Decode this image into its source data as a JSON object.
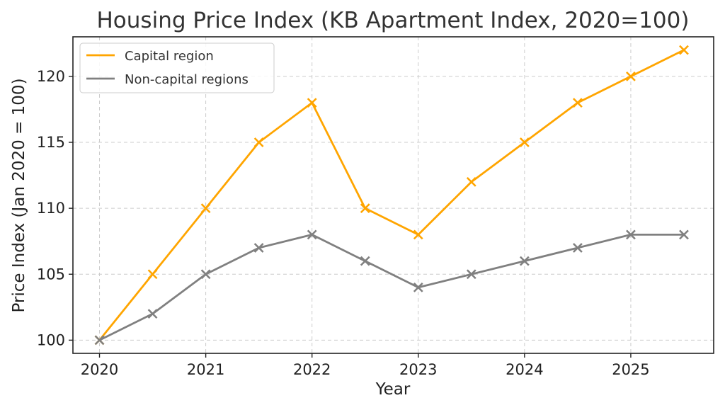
{
  "chart_data": {
    "type": "line",
    "title": "Housing Price Index (KB Apartment Index, 2020=100)",
    "xlabel": "Year",
    "ylabel": "Price Index (Jan 2020 = 100)",
    "xlim": [
      2019.75,
      2025.78
    ],
    "ylim": [
      99,
      123
    ],
    "xticks": [
      2020,
      2021,
      2022,
      2023,
      2024,
      2025
    ],
    "yticks": [
      100,
      105,
      110,
      115,
      120
    ],
    "grid": true,
    "legend_position": "top-left",
    "x": [
      2020,
      2020.5,
      2021,
      2021.5,
      2022,
      2022.5,
      2023,
      2023.5,
      2024,
      2024.5,
      2025,
      2025.5
    ],
    "series": [
      {
        "name": "Capital region",
        "color": "#FFA500",
        "marker": "x",
        "values": [
          100,
          105,
          110,
          115,
          118,
          110,
          108,
          112,
          115,
          118,
          120,
          122
        ]
      },
      {
        "name": "Non-capital regions",
        "color": "#808080",
        "marker": "x",
        "values": [
          100,
          102,
          105,
          107,
          108,
          106,
          104,
          105,
          106,
          107,
          108,
          108
        ]
      }
    ]
  }
}
